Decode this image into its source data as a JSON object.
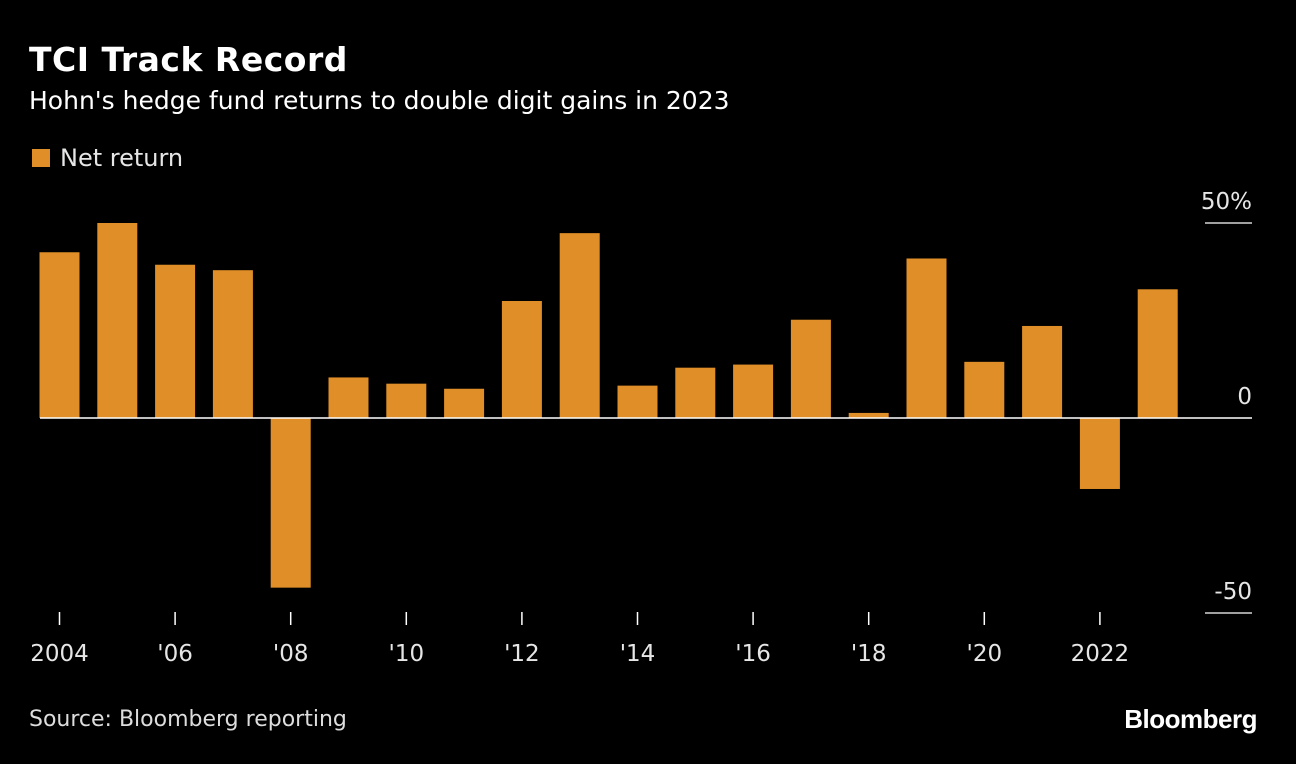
{
  "header": {
    "title": "TCI Track Record",
    "subtitle": "Hohn's hedge fund returns to double digit gains in 2023"
  },
  "footer": {
    "source": "Source: Bloomberg reporting",
    "brand": "Bloomberg"
  },
  "colors": {
    "background": "#000000",
    "bar": "#E08E27",
    "axis": "#ffffff",
    "tick_text": "#e6e6e6"
  },
  "chart_data": {
    "type": "bar",
    "title": "TCI Track Record",
    "subtitle": "Hohn's hedge fund returns to double digit gains in 2023",
    "legend": [
      "Net return"
    ],
    "legend_position": "top-left",
    "categories": [
      "2004",
      "2005",
      "2006",
      "2007",
      "2008",
      "2009",
      "2010",
      "2011",
      "2012",
      "2013",
      "2014",
      "2015",
      "2016",
      "2017",
      "2018",
      "2019",
      "2020",
      "2021",
      "2022",
      "2023"
    ],
    "series": [
      {
        "name": "Net return",
        "values": [
          42.5,
          50,
          39.3,
          37.9,
          -43.5,
          10.4,
          8.8,
          7.5,
          30,
          47.4,
          8.3,
          12.9,
          13.7,
          25.2,
          1.3,
          40.9,
          14.4,
          23.6,
          -18.2,
          33
        ]
      }
    ],
    "x_tick_labels": [
      "2004",
      "'06",
      "'08",
      "'10",
      "'12",
      "'14",
      "'16",
      "'18",
      "'20",
      "2022"
    ],
    "x_tick_years": [
      "2004",
      "2006",
      "2008",
      "2010",
      "2012",
      "2014",
      "2016",
      "2018",
      "2020",
      "2022"
    ],
    "y_ticks": [
      50,
      0,
      -50
    ],
    "y_tick_labels": [
      "50%",
      "0",
      "-50"
    ],
    "ylim": [
      -50,
      50
    ],
    "grid": false,
    "xlabel": "",
    "ylabel": ""
  }
}
